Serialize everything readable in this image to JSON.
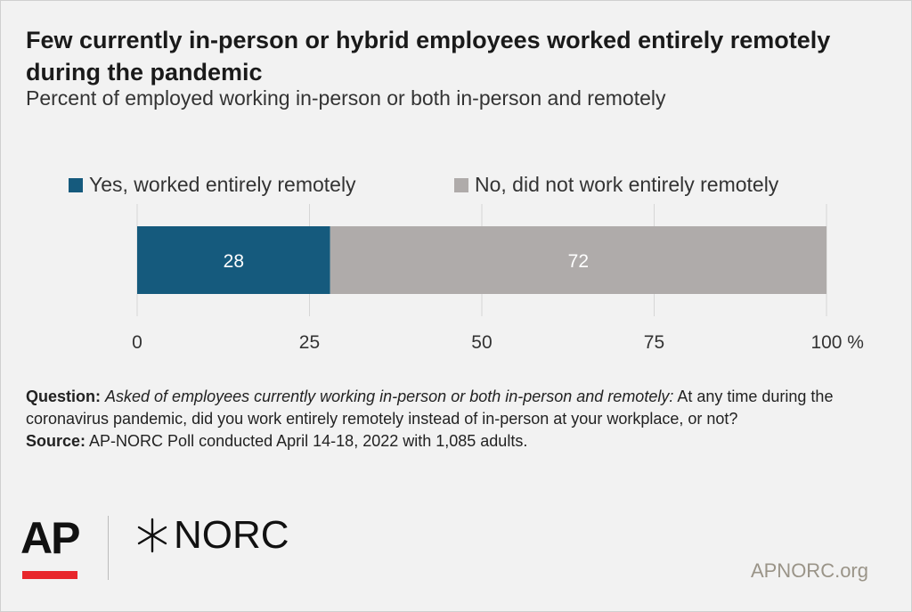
{
  "header": {
    "title": "Few currently in-person or hybrid employees worked entirely remotely during the pandemic",
    "subtitle": "Percent of employed working in-person or both in-person and remotely"
  },
  "chart_data": {
    "type": "bar",
    "orientation": "horizontal",
    "stacked": true,
    "categories": [
      ""
    ],
    "series": [
      {
        "name": "Yes, worked entirely remotely",
        "values": [
          28
        ],
        "color": "#155a7d",
        "label_color": "#ffffff"
      },
      {
        "name": "No, did not work entirely remotely",
        "values": [
          72
        ],
        "color": "#afabaa",
        "label_color": "#ffffff"
      }
    ],
    "xlim": [
      0,
      100
    ],
    "xticks": [
      "0",
      "25",
      "50",
      "75",
      "100 %"
    ],
    "xtick_values": [
      0,
      25,
      50,
      75,
      100
    ],
    "grid": true,
    "legend": "top"
  },
  "footer": {
    "question_label": "Question:",
    "question_intro": "Asked of employees currently working in-person or both in-person and remotely:",
    "question_text": "At any time during the coronavirus pandemic, did you work entirely remotely instead of in-person at your workplace, or not?",
    "source_label": "Source:",
    "source_text": "AP-NORC Poll conducted April 14-18, 2022 with 1,085 adults."
  },
  "branding": {
    "ap_logo": "AP",
    "norc_logo": "NORC",
    "site": "APNORC.org",
    "ap_accent": "#e8262b"
  }
}
